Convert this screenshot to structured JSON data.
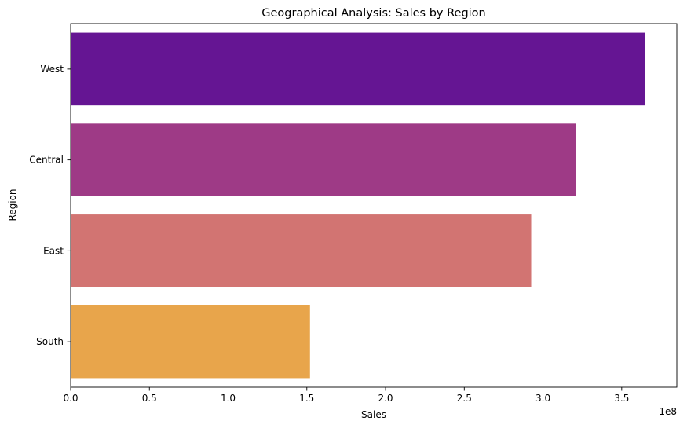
{
  "chart_data": {
    "type": "bar",
    "orientation": "horizontal",
    "title": "Geographical Analysis: Sales by Region",
    "xlabel": "Sales",
    "ylabel": "Region",
    "x_offset_label": "1e8",
    "x_scale_factor": 100000000,
    "categories": [
      "West",
      "Central",
      "East",
      "South"
    ],
    "values": [
      365000000,
      321000000,
      292500000,
      152000000
    ],
    "colors": [
      "#651593",
      "#9e3a86",
      "#d27472",
      "#e8a54b"
    ],
    "xlim": [
      0,
      385000000
    ],
    "xticks": [
      0,
      50000000,
      100000000,
      150000000,
      200000000,
      250000000,
      300000000,
      350000000
    ],
    "xtick_labels": [
      "0.0",
      "0.5",
      "1.0",
      "1.5",
      "2.0",
      "2.5",
      "3.0",
      "3.5"
    ],
    "grid": false,
    "legend": false
  }
}
